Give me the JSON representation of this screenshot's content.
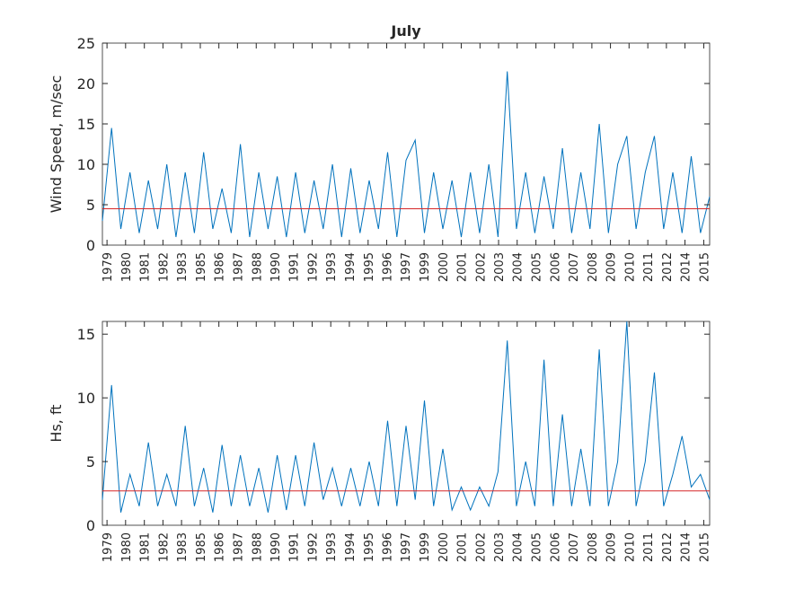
{
  "chart_data": [
    {
      "type": "line",
      "title": "July",
      "ylabel": "Wind Speed, m/sec",
      "xlim": [
        0,
        33
      ],
      "ylim": [
        0,
        25
      ],
      "yticks": [
        0,
        5,
        10,
        15,
        20,
        25
      ],
      "xticks": [
        {
          "value": 0.25,
          "label": "1979"
        },
        {
          "value": 1.26,
          "label": "1980"
        },
        {
          "value": 2.28,
          "label": "1981"
        },
        {
          "value": 3.29,
          "label": "1982"
        },
        {
          "value": 4.3,
          "label": "1983"
        },
        {
          "value": 5.32,
          "label": "1985"
        },
        {
          "value": 6.33,
          "label": "1986"
        },
        {
          "value": 7.34,
          "label": "1987"
        },
        {
          "value": 8.36,
          "label": "1988"
        },
        {
          "value": 9.37,
          "label": "1990"
        },
        {
          "value": 10.38,
          "label": "1991"
        },
        {
          "value": 11.4,
          "label": "1992"
        },
        {
          "value": 12.41,
          "label": "1993"
        },
        {
          "value": 13.42,
          "label": "1994"
        },
        {
          "value": 14.44,
          "label": "1995"
        },
        {
          "value": 15.45,
          "label": "1996"
        },
        {
          "value": 16.46,
          "label": "1997"
        },
        {
          "value": 17.48,
          "label": "1999"
        },
        {
          "value": 18.49,
          "label": "2000"
        },
        {
          "value": 19.5,
          "label": "2001"
        },
        {
          "value": 20.52,
          "label": "2002"
        },
        {
          "value": 21.53,
          "label": "2003"
        },
        {
          "value": 22.54,
          "label": "2004"
        },
        {
          "value": 23.56,
          "label": "2005"
        },
        {
          "value": 24.57,
          "label": "2006"
        },
        {
          "value": 25.58,
          "label": "2007"
        },
        {
          "value": 26.6,
          "label": "2008"
        },
        {
          "value": 27.61,
          "label": "2009"
        },
        {
          "value": 28.62,
          "label": "2010"
        },
        {
          "value": 29.64,
          "label": "2011"
        },
        {
          "value": 30.65,
          "label": "2012"
        },
        {
          "value": 31.66,
          "label": "2014"
        },
        {
          "value": 32.68,
          "label": "2015"
        }
      ],
      "mean_line": 4.5,
      "mean_color": "#d62728",
      "series": [
        {
          "color": "#0072bd",
          "x": [
            0,
            0.5,
            1,
            1.5,
            2,
            2.5,
            3,
            3.5,
            4,
            4.5,
            5,
            5.5,
            6,
            6.5,
            7,
            7.5,
            8,
            8.5,
            9,
            9.5,
            10,
            10.5,
            11,
            11.5,
            12,
            12.5,
            13,
            13.5,
            14,
            14.5,
            15,
            15.5,
            16,
            16.5,
            17,
            17.5,
            18,
            18.5,
            19,
            19.5,
            20,
            20.5,
            21,
            21.5,
            22,
            22.5,
            23,
            23.5,
            24,
            24.5,
            25,
            25.5,
            26,
            26.5,
            27,
            27.5,
            28,
            28.5,
            29,
            29.5,
            30,
            30.5,
            31,
            31.5,
            32,
            32.5,
            33
          ],
          "values": [
            3,
            14.5,
            2,
            9,
            1.5,
            8,
            2,
            10,
            1,
            9,
            1.5,
            11.5,
            2,
            7,
            1.5,
            12.5,
            1,
            9,
            2,
            8.5,
            1,
            9,
            1.5,
            8,
            2,
            10,
            1,
            9.5,
            1.5,
            8,
            2,
            11.5,
            1,
            10.5,
            13,
            1.5,
            9,
            2,
            8,
            1,
            9,
            1.5,
            10,
            1,
            21.5,
            2,
            9,
            1.5,
            8.5,
            2,
            12,
            1.5,
            9,
            2,
            15,
            1.5,
            10,
            13.5,
            2,
            9,
            13.5,
            2,
            9,
            1.5,
            11,
            1.5,
            6
          ]
        }
      ]
    },
    {
      "type": "line",
      "ylabel": "Hs, ft",
      "xlim": [
        0,
        33
      ],
      "ylim": [
        0,
        16
      ],
      "yticks": [
        0,
        5,
        10,
        15
      ],
      "xticks": [
        {
          "value": 0.25,
          "label": "1979"
        },
        {
          "value": 1.26,
          "label": "1980"
        },
        {
          "value": 2.28,
          "label": "1981"
        },
        {
          "value": 3.29,
          "label": "1982"
        },
        {
          "value": 4.3,
          "label": "1983"
        },
        {
          "value": 5.32,
          "label": "1985"
        },
        {
          "value": 6.33,
          "label": "1986"
        },
        {
          "value": 7.34,
          "label": "1987"
        },
        {
          "value": 8.36,
          "label": "1988"
        },
        {
          "value": 9.37,
          "label": "1990"
        },
        {
          "value": 10.38,
          "label": "1991"
        },
        {
          "value": 11.4,
          "label": "1992"
        },
        {
          "value": 12.41,
          "label": "1993"
        },
        {
          "value": 13.42,
          "label": "1994"
        },
        {
          "value": 14.44,
          "label": "1995"
        },
        {
          "value": 15.45,
          "label": "1996"
        },
        {
          "value": 16.46,
          "label": "1997"
        },
        {
          "value": 17.48,
          "label": "1999"
        },
        {
          "value": 18.49,
          "label": "2000"
        },
        {
          "value": 19.5,
          "label": "2001"
        },
        {
          "value": 20.52,
          "label": "2002"
        },
        {
          "value": 21.53,
          "label": "2003"
        },
        {
          "value": 22.54,
          "label": "2004"
        },
        {
          "value": 23.56,
          "label": "2005"
        },
        {
          "value": 24.57,
          "label": "2006"
        },
        {
          "value": 25.58,
          "label": "2007"
        },
        {
          "value": 26.6,
          "label": "2008"
        },
        {
          "value": 27.61,
          "label": "2009"
        },
        {
          "value": 28.62,
          "label": "2010"
        },
        {
          "value": 29.64,
          "label": "2011"
        },
        {
          "value": 30.65,
          "label": "2012"
        },
        {
          "value": 31.66,
          "label": "2014"
        },
        {
          "value": 32.68,
          "label": "2015"
        }
      ],
      "mean_line": 2.7,
      "mean_color": "#d62728",
      "series": [
        {
          "color": "#0072bd",
          "x": [
            0,
            0.5,
            1,
            1.5,
            2,
            2.5,
            3,
            3.5,
            4,
            4.5,
            5,
            5.5,
            6,
            6.5,
            7,
            7.5,
            8,
            8.5,
            9,
            9.5,
            10,
            10.5,
            11,
            11.5,
            12,
            12.5,
            13,
            13.5,
            14,
            14.5,
            15,
            15.5,
            16,
            16.5,
            17,
            17.5,
            18,
            18.5,
            19,
            19.5,
            20,
            20.5,
            21,
            21.5,
            22,
            22.5,
            23,
            23.5,
            24,
            24.5,
            25,
            25.5,
            26,
            26.5,
            27,
            27.5,
            28,
            28.5,
            29,
            29.5,
            30,
            30.5,
            31,
            31.5,
            32,
            32.5,
            33
          ],
          "values": [
            2,
            11,
            1,
            4,
            1.5,
            6.5,
            1.5,
            4,
            1.5,
            7.8,
            1.5,
            4.5,
            1,
            6.3,
            1.5,
            5.5,
            1.5,
            4.5,
            1,
            5.5,
            1.2,
            5.5,
            1.5,
            6.5,
            2,
            4.5,
            1.5,
            4.5,
            1.5,
            5,
            1.5,
            8.2,
            1.5,
            7.8,
            2,
            9.8,
            1.5,
            6,
            1.2,
            3,
            1.2,
            3,
            1.5,
            4.2,
            14.5,
            1.5,
            5,
            1.5,
            13,
            1.5,
            8.7,
            1.5,
            6,
            1.5,
            13.8,
            1.5,
            5,
            16,
            1.5,
            5,
            12,
            1.5,
            4,
            7,
            3,
            4,
            2
          ]
        }
      ]
    }
  ]
}
